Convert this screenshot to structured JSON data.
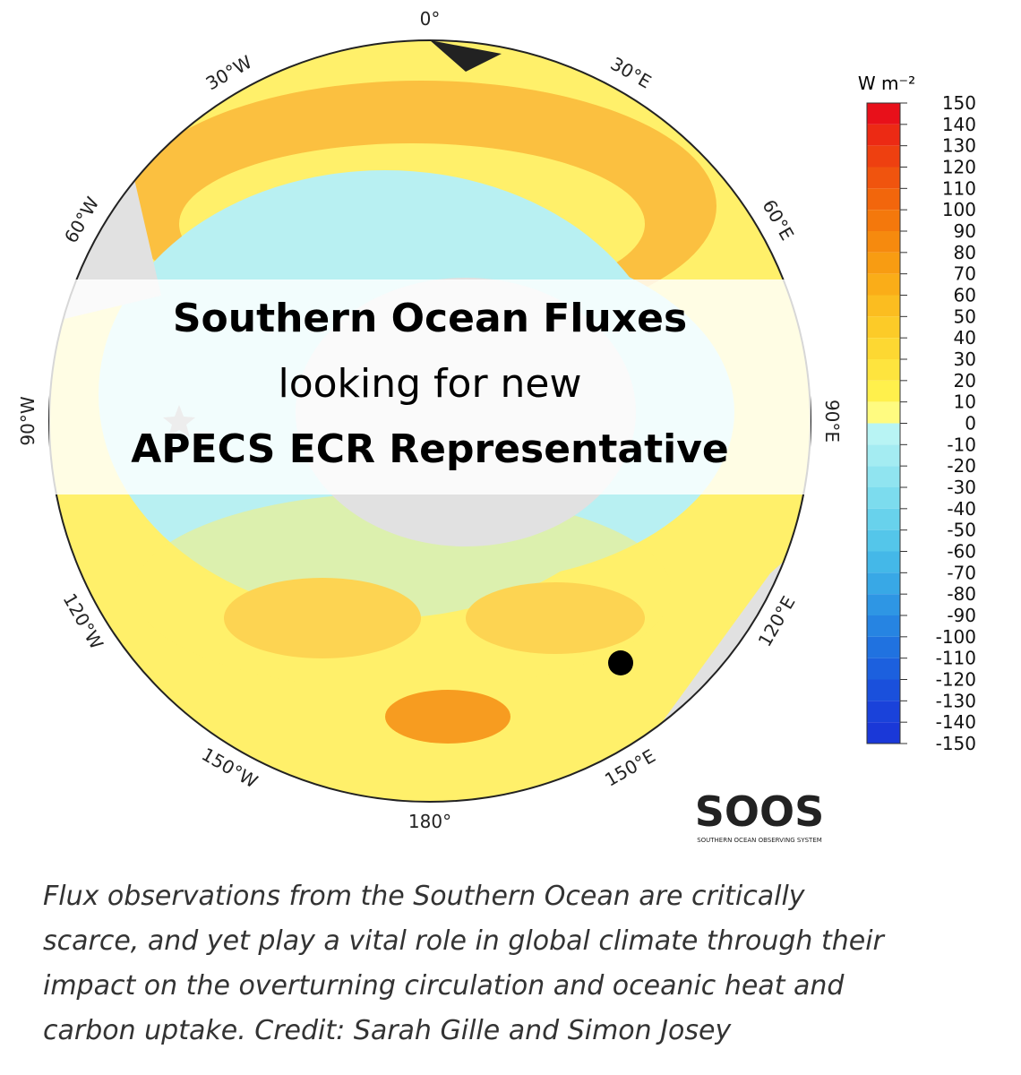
{
  "map": {
    "lon_labels": [
      "0°",
      "30°E",
      "60°E",
      "90°E",
      "120°E",
      "150°E",
      "180°",
      "150°W",
      "120°W",
      "90°W",
      "60°W",
      "30°W"
    ]
  },
  "colorbar": {
    "unit": "W m⁻²",
    "ticks": [
      150,
      140,
      130,
      120,
      110,
      100,
      90,
      80,
      70,
      60,
      50,
      40,
      30,
      20,
      10,
      0,
      -10,
      -20,
      -30,
      -40,
      -50,
      -60,
      -70,
      -80,
      -90,
      -100,
      -110,
      -120,
      -130,
      -140,
      -150
    ],
    "colors": [
      "#e8101a",
      "#ec2a14",
      "#ee4010",
      "#f0540e",
      "#f2660c",
      "#f4780c",
      "#f68a0e",
      "#f89c12",
      "#faad18",
      "#fbbd20",
      "#fccb28",
      "#fdd832",
      "#fee43e",
      "#fff04c",
      "#fffb80",
      "#b8f4f4",
      "#a4ecf2",
      "#90e4f0",
      "#7cdcee",
      "#68d2ec",
      "#54c6ea",
      "#44b8e8",
      "#38a8e6",
      "#2e96e4",
      "#2684e2",
      "#2072e0",
      "#1c60de",
      "#1a50dc",
      "#1a42da",
      "#1a38d8"
    ]
  },
  "banner": {
    "line1": "Southern Ocean Fluxes",
    "line2": "looking for new",
    "line3": "APECS ECR Representative"
  },
  "logo": {
    "name": "SOOS",
    "subtitle": "SOUTHERN OCEAN OBSERVING SYSTEM"
  },
  "caption": [
    "Flux observations from the Southern Ocean are critically",
    "scarce, and yet play a vital role in global climate through their",
    "impact on the overturning circulation and oceanic heat and",
    "carbon uptake. Credit: Sarah Gille and Simon Josey"
  ]
}
